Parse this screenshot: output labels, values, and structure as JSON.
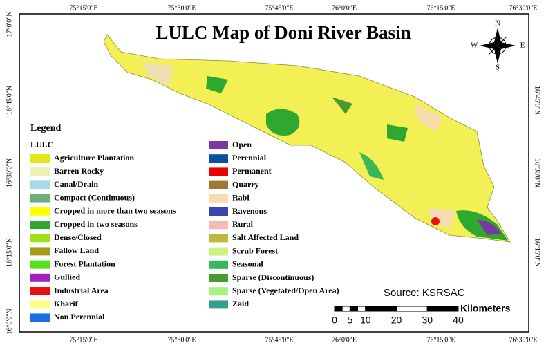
{
  "title": "LULC Map of Doni River Basin",
  "top_labels": [
    "75°15'0\"E",
    "75°30'0\"E",
    "75°45'0\"E",
    "76°0'0\"E",
    "76°15'0\"E",
    "76°30'0\"E"
  ],
  "bottom_labels": [
    "75°15'0\"E",
    "75°30'0\"E",
    "75°45'0\"E",
    "76°0'0\"E",
    "76°15'0\"E",
    "76°30'0\"E"
  ],
  "left_labels": [
    "17°0'0\"N",
    "16°45'0\"N",
    "16°30'0\"N",
    "16°15'0\"N",
    "16°0'0\"N"
  ],
  "right_labels": [
    "16°45'0\"N",
    "16°30'0\"N",
    "16°15'0\"N"
  ],
  "compass": {
    "n": "N",
    "s": "S",
    "e": "E",
    "w": "W"
  },
  "legend": {
    "title": "Legend",
    "subtitle": "LULC",
    "left": [
      {
        "label": "Agriculture Plantation",
        "color": "#e6e61a"
      },
      {
        "label": "Barren Rocky",
        "color": "#f0eeb0"
      },
      {
        "label": "Canal/Drain",
        "color": "#a8d8ea"
      },
      {
        "label": "Compact (Continuous)",
        "color": "#6fae7a"
      },
      {
        "label": "Cropped in more than two seasons",
        "color": "#ffff00"
      },
      {
        "label": "Cropped in two seasons",
        "color": "#2ea82e"
      },
      {
        "label": "Dense/Closed",
        "color": "#9be01a"
      },
      {
        "label": "Fallow Land",
        "color": "#a89a1a"
      },
      {
        "label": "Forest Plantation",
        "color": "#55dd22"
      },
      {
        "label": "Gullied",
        "color": "#a020c0"
      },
      {
        "label": "Industrial Area",
        "color": "#e81010"
      },
      {
        "label": "Kharif",
        "color": "#ffff88"
      },
      {
        "label": "Non Perennial",
        "color": "#1a70e0"
      }
    ],
    "right": [
      {
        "label": "Open",
        "color": "#7a38a0"
      },
      {
        "label": "Perennial",
        "color": "#0a4fa0"
      },
      {
        "label": "Permanent",
        "color": "#ee0000"
      },
      {
        "label": "Quarry",
        "color": "#a07830"
      },
      {
        "label": "Rabi",
        "color": "#f8dcb0"
      },
      {
        "label": "Ravenous",
        "color": "#3848b0"
      },
      {
        "label": "Rural",
        "color": "#f8b8b8"
      },
      {
        "label": "Salt Affected Land",
        "color": "#c0b840"
      },
      {
        "label": "Scrub Forest",
        "color": "#d0f080"
      },
      {
        "label": "Seasonal",
        "color": "#38b858"
      },
      {
        "label": "Sparse (Discontinuous)",
        "color": "#4a9a30"
      },
      {
        "label": "Sparse (Vegetated/Open Area)",
        "color": "#a8f080"
      },
      {
        "label": "Zaid",
        "color": "#30a090"
      }
    ]
  },
  "source": "Source: KSRSAC",
  "scale": {
    "unit": "Kilometers",
    "ticks": [
      0,
      5,
      10,
      20,
      30,
      40
    ]
  }
}
